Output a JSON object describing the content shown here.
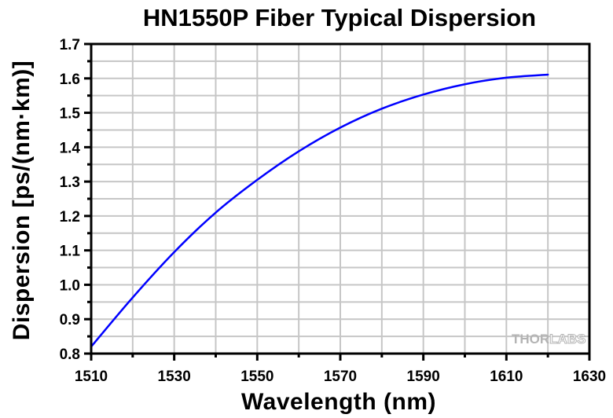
{
  "chart_data": {
    "type": "line",
    "title": "HN1550P Fiber Typical Dispersion",
    "xlabel": "Wavelength (nm)",
    "ylabel": "Dispersion [ps/(nm·km)]",
    "xlim": [
      1510,
      1630
    ],
    "ylim": [
      0.8,
      1.7
    ],
    "x_major_ticks": [
      1510,
      1530,
      1550,
      1570,
      1590,
      1610,
      1630
    ],
    "x_tick_labels": [
      "1510",
      "1530",
      "1550",
      "1570",
      "1590",
      "1610",
      "1630"
    ],
    "x_minor_step": 10,
    "y_major_ticks": [
      0.8,
      0.9,
      1.0,
      1.1,
      1.2,
      1.3,
      1.4,
      1.5,
      1.6,
      1.7
    ],
    "y_tick_labels": [
      "0.8",
      "0.9",
      "1.0",
      "1.1",
      "1.2",
      "1.3",
      "1.4",
      "1.5",
      "1.6",
      "1.7"
    ],
    "y_minor_step": 0.05,
    "grid": true,
    "legend": null,
    "series": [
      {
        "name": "HN1550P Dispersion",
        "color": "#0000ff",
        "x": [
          1510,
          1520,
          1530,
          1540,
          1550,
          1560,
          1570,
          1580,
          1590,
          1600,
          1610,
          1620
        ],
        "y": [
          0.82,
          0.963,
          1.095,
          1.21,
          1.305,
          1.388,
          1.457,
          1.512,
          1.553,
          1.583,
          1.602,
          1.611
        ]
      }
    ],
    "watermark": {
      "solid": "THOR",
      "outline": "LABS"
    }
  }
}
